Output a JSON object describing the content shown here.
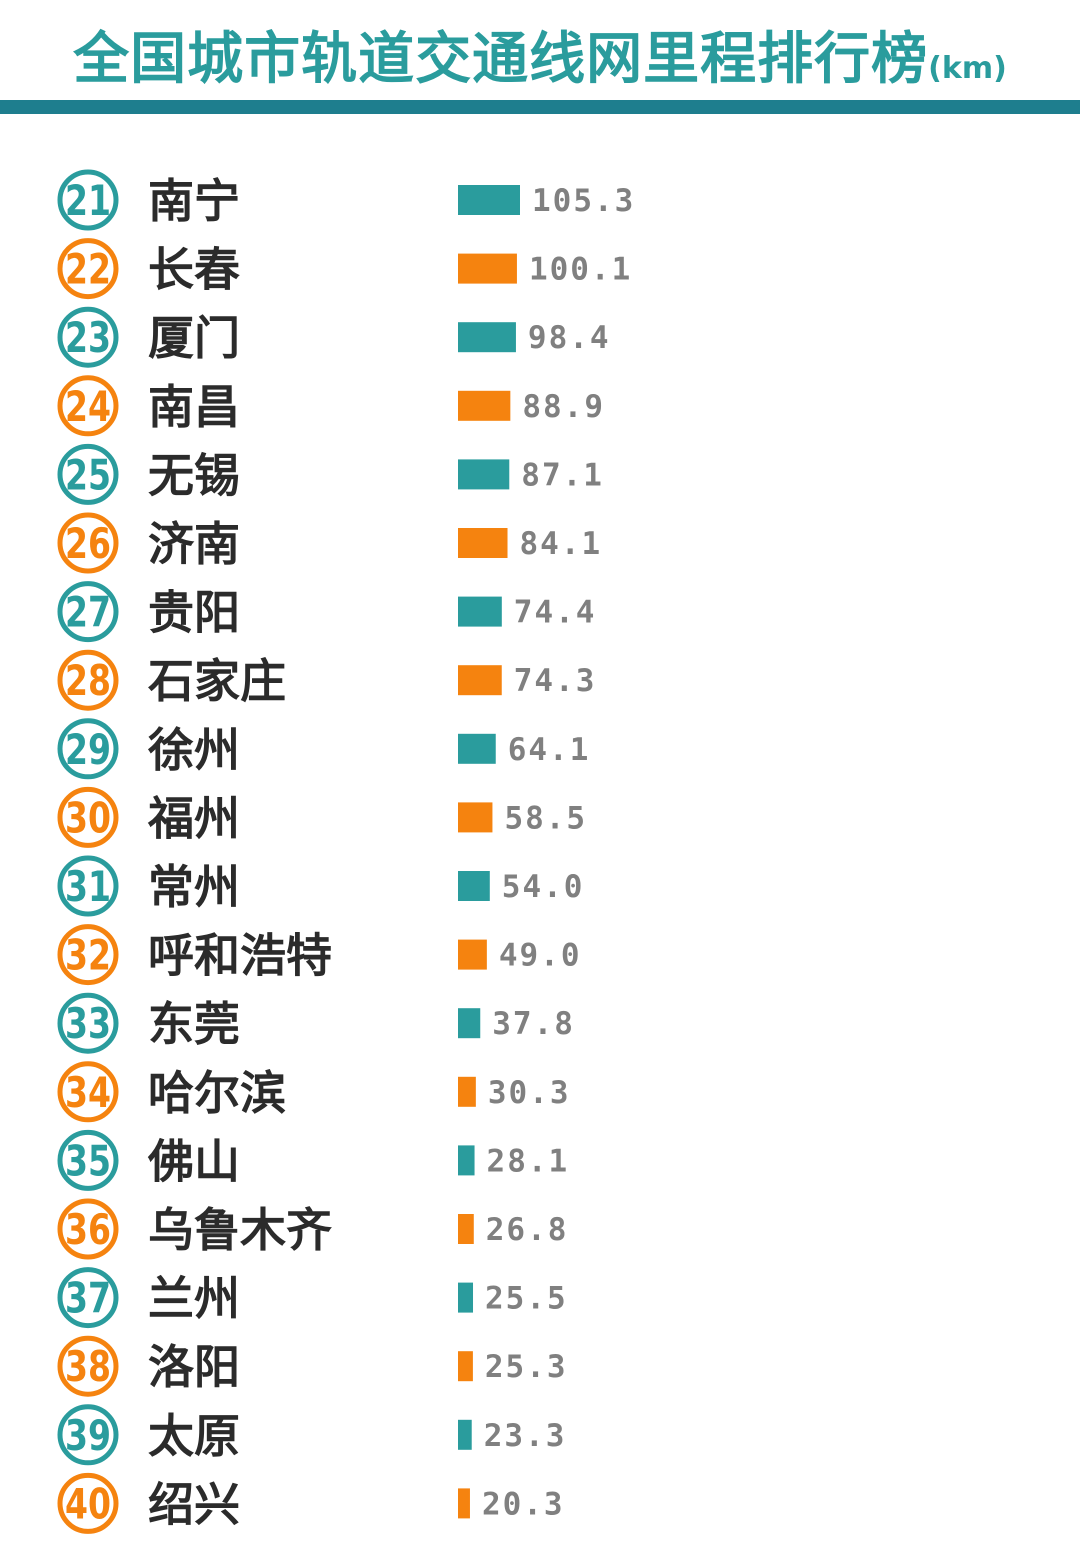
{
  "title": "全国城市轨道交通线网里程排行榜",
  "unit": "(km)",
  "colors": {
    "teal": "#2a9c9d",
    "orange": "#f5830f",
    "rule": "#1e7e8e",
    "value_text": "#808080"
  },
  "chart_data": {
    "type": "bar",
    "orientation": "horizontal",
    "title": "全国城市轨道交通线网里程排行榜",
    "unit": "(km)",
    "xlim": [
      0,
      105.3
    ],
    "grid": false,
    "ranks": [
      "21",
      "22",
      "23",
      "24",
      "25",
      "26",
      "27",
      "28",
      "29",
      "30",
      "31",
      "32",
      "33",
      "34",
      "35",
      "36",
      "37",
      "38",
      "39",
      "40"
    ],
    "categories": [
      "南宁",
      "长春",
      "厦门",
      "南昌",
      "无锡",
      "济南",
      "贵阳",
      "石家庄",
      "徐州",
      "福州",
      "常州",
      "呼和浩特",
      "东莞",
      "哈尔滨",
      "佛山",
      "乌鲁木齐",
      "兰州",
      "洛阳",
      "太原",
      "绍兴"
    ],
    "values": [
      105.3,
      100.1,
      98.4,
      88.9,
      87.1,
      84.1,
      74.4,
      74.3,
      64.1,
      58.5,
      54.0,
      49.0,
      37.8,
      30.3,
      28.1,
      26.8,
      25.5,
      25.3,
      23.3,
      20.3
    ],
    "value_labels": [
      "105.3",
      "100.1",
      "98.4",
      "88.9",
      "87.1",
      "84.1",
      "74.4",
      "74.3",
      "64.1",
      "58.5",
      "54.0",
      "49.0",
      "37.8",
      "30.3",
      "28.1",
      "26.8",
      "25.5",
      "25.3",
      "23.3",
      "20.3"
    ],
    "bar_colors": [
      "teal",
      "orange",
      "teal",
      "orange",
      "teal",
      "orange",
      "teal",
      "orange",
      "teal",
      "orange",
      "teal",
      "orange",
      "teal",
      "orange",
      "teal",
      "orange",
      "teal",
      "orange",
      "teal",
      "orange"
    ]
  }
}
